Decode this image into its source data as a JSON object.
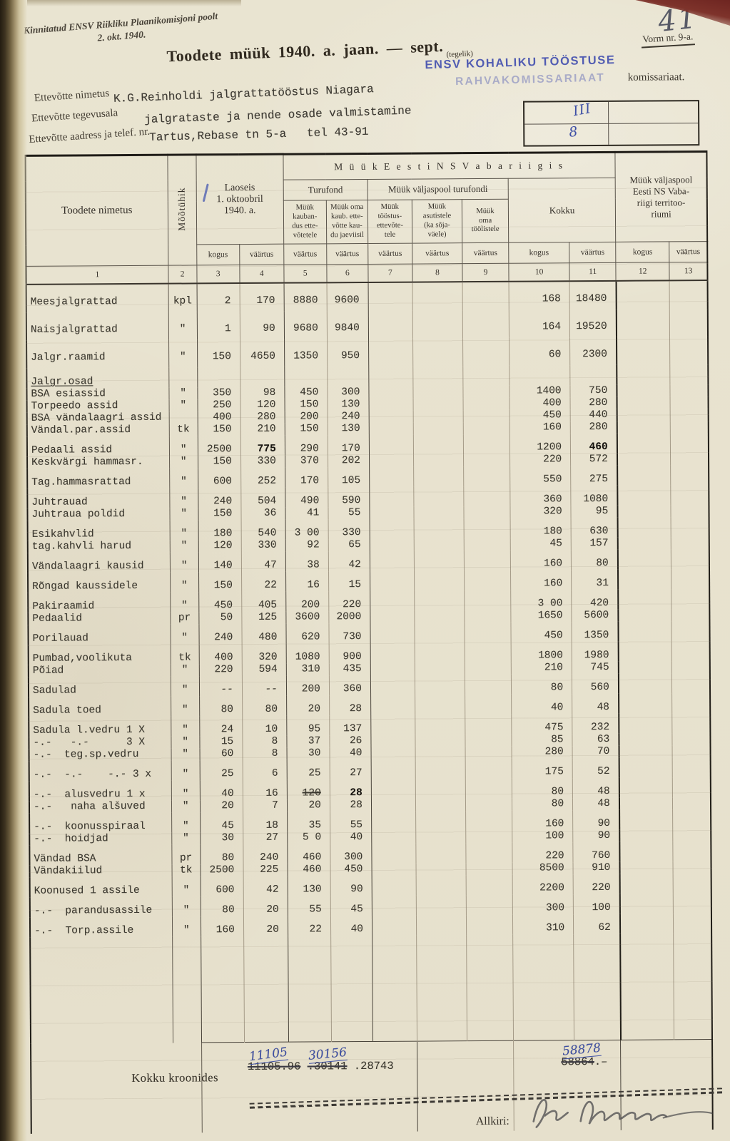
{
  "head": {
    "approved1": "Kinnitatud ENSV Riikliku Plaanikomisjoni poolt",
    "approved2": "2. okt. 1940.",
    "hand_number": "41",
    "form_number": "Vorm nr. 9-a.",
    "title": "Toodete müük 1940. a. jaan. — sept.",
    "title_note": "(tegelik)",
    "stamp1": "ENSV KOHALIKU TÖÖSTUSE",
    "stamp2": "RAHVAKOMISSARIAAT",
    "komissariaat": "komissariaat.",
    "fields": [
      {
        "label": "Ettevõtte nimetus",
        "value": "K.G.Reinholdi jalgrattatööstus Niagara"
      },
      {
        "label": "Ettevõtte tegevusala",
        "value": "jalgrataste ja nende osade valmistamine"
      },
      {
        "label": "Ettevõtte aadress ja telef. nr.",
        "value": "Tartus,Rebase tn 5-a   tel 43-91"
      }
    ],
    "box": {
      "r1": "III",
      "r2": "8"
    }
  },
  "table": {
    "h": {
      "name": "Toodete nimetus",
      "unit": "Mõõtühik",
      "laoseis": "Laoseis\n1. oktoobril\n1940. a.",
      "ensv": "M ü ü k  E e s t i  N S  V a b a r i i g i s",
      "valjaspool": "Müük väljaspool\nEesti NS Vaba-\nriigi territoo-\nriumi",
      "turufond": "Turufond",
      "valjaspool_turufondi": "Müük väljaspool turufondi",
      "kokku": "Kokku",
      "c5": "Müük\nkauban-\ndus ette-\nvõtetele",
      "c6": "Müük oma\nkaub. ette-\nvõtte kau-\ndu jaeviisil",
      "c7": "Müük\ntööstus-\nettevõte-\ntele",
      "c8": "Müük\nasutistele\n(ka sõja-\nväele)",
      "c9": "Müük\noma\ntöölistele",
      "kogus": "kogus",
      "vaartus": "väärtus"
    },
    "nums": [
      "1",
      "2",
      "3",
      "4",
      "5",
      "6",
      "7",
      "8",
      "9",
      "10",
      "11",
      "12",
      "13"
    ],
    "rows": [
      {
        "c": [
          "Meesjalgrattad",
          "kpl",
          "2",
          "170",
          "8880",
          "9600",
          "",
          "",
          "",
          "168",
          "18480",
          "",
          ""
        ],
        "sp": "w"
      },
      {
        "c": [
          "Naisjalgrattad",
          "\"",
          "1",
          "90",
          "9680",
          "9840",
          "",
          "",
          "",
          "164",
          "19520",
          "",
          ""
        ],
        "sp": "w"
      },
      {
        "c": [
          "Jalgr.raamid",
          "\"",
          "150",
          "4650",
          "1350",
          "950",
          "",
          "",
          "",
          "60",
          "2300",
          "",
          ""
        ],
        "sp": "w"
      },
      {
        "c": [
          "Jalgr.osad",
          "",
          "",
          "",
          "",
          "",
          "",
          "",
          "",
          "",
          "",
          "",
          ""
        ],
        "sp": "g",
        "gap": true
      },
      {
        "c": [
          "BSA esiassid",
          "\"",
          "350",
          "98",
          "450",
          "300",
          "",
          "",
          "",
          "1400",
          "750",
          "",
          ""
        ],
        "sp": "t"
      },
      {
        "c": [
          "Torpeedo assid",
          "\"",
          "250",
          "120",
          "150",
          "130",
          "",
          "",
          "",
          "400",
          "280",
          "",
          ""
        ],
        "sp": "t"
      },
      {
        "c": [
          "BSA vändalaagri assid",
          "",
          "400",
          "280",
          "200",
          "240",
          "",
          "",
          "",
          "450",
          "440",
          "",
          ""
        ],
        "sp": "t"
      },
      {
        "c": [
          "Vändal.par.assid",
          "tk",
          "150",
          "210",
          "150",
          "130",
          "",
          "",
          "",
          "160",
          "280",
          "",
          ""
        ],
        "sp": "t"
      },
      {
        "c": [
          "Pedaali assid",
          "\"",
          "2500",
          "775",
          "290",
          "170",
          "",
          "",
          "",
          "1200",
          "460",
          "",
          ""
        ],
        "sp": "t",
        "gap": true,
        "marks": {
          "3": "b",
          "10": "b"
        }
      },
      {
        "c": [
          "Keskvärgi hammasr.",
          "\"",
          "150",
          "330",
          "370",
          "202",
          "",
          "",
          "",
          "220",
          "572",
          "",
          ""
        ],
        "sp": "t"
      },
      {
        "c": [
          "Tag.hammasrattad",
          "\"",
          "600",
          "252",
          "170",
          "105",
          "",
          "",
          "",
          "550",
          "275",
          "",
          ""
        ],
        "sp": "t",
        "gap": true
      },
      {
        "c": [
          "Juhtrauad",
          "\"",
          "240",
          "504",
          "490",
          "590",
          "",
          "",
          "",
          "360",
          "1080",
          "",
          ""
        ],
        "sp": "t",
        "gap": true
      },
      {
        "c": [
          "Juhtraua poldid",
          "\"",
          "150",
          "36",
          "41",
          "55",
          "",
          "",
          "",
          "320",
          "95",
          "",
          ""
        ],
        "sp": "t"
      },
      {
        "c": [
          "Esikahvlid",
          "\"",
          "180",
          "540",
          "3 00",
          "330",
          "",
          "",
          "",
          "180",
          "630",
          "",
          ""
        ],
        "sp": "t",
        "gap": true
      },
      {
        "c": [
          "tag.kahvli harud",
          "\"",
          "120",
          "330",
          "92",
          "65",
          "",
          "",
          "",
          "45",
          "157",
          "",
          ""
        ],
        "sp": "t"
      },
      {
        "c": [
          "Vändalaagri kausid",
          "\"",
          "140",
          "47",
          "38",
          "42",
          "",
          "",
          "",
          "160",
          "80",
          "",
          ""
        ],
        "sp": "t",
        "gap": true
      },
      {
        "c": [
          "Rõngad kaussidele",
          "\"",
          "150",
          "22",
          "16",
          "15",
          "",
          "",
          "",
          "160",
          "31",
          "",
          ""
        ],
        "sp": "t",
        "gap": true
      },
      {
        "c": [
          "Pakiraamid",
          "\"",
          "450",
          "405",
          "200",
          "220",
          "",
          "",
          "",
          "3 00",
          "420",
          "",
          ""
        ],
        "sp": "t",
        "gap": true
      },
      {
        "c": [
          "Pedaalid",
          "pr",
          "50",
          "125",
          "3600",
          "2000",
          "",
          "",
          "",
          "1650",
          "5600",
          "",
          ""
        ],
        "sp": "t"
      },
      {
        "c": [
          "Porilauad",
          "\"",
          "240",
          "480",
          "620",
          "730",
          "",
          "",
          "",
          "450",
          "1350",
          "",
          ""
        ],
        "sp": "t",
        "gap": true
      },
      {
        "c": [
          "Pumbad,voolikuta",
          "tk",
          "400",
          "320",
          "1080",
          "900",
          "",
          "",
          "",
          "1800",
          "1980",
          "",
          ""
        ],
        "sp": "t",
        "gap": true
      },
      {
        "c": [
          "Põiad",
          "\"",
          "220",
          "594",
          "310",
          "435",
          "",
          "",
          "",
          "210",
          "745",
          "",
          ""
        ],
        "sp": "t"
      },
      {
        "c": [
          "Sadulad",
          "\"",
          "--",
          "--",
          "200",
          "360",
          "",
          "",
          "",
          "80",
          "560",
          "",
          ""
        ],
        "sp": "t",
        "gap": true
      },
      {
        "c": [
          "Sadula toed",
          "\"",
          "80",
          "80",
          "20",
          "28",
          "",
          "",
          "",
          "40",
          "48",
          "",
          ""
        ],
        "sp": "t",
        "gap": true
      },
      {
        "c": [
          "Sadula l.vedru 1 X",
          "\"",
          "24",
          "10",
          "95",
          "137",
          "",
          "",
          "",
          "475",
          "232",
          "",
          ""
        ],
        "sp": "t",
        "gap": true
      },
      {
        "c": [
          "-.-   -.-      3 X",
          "\"",
          "15",
          "8",
          "37",
          "26",
          "",
          "",
          "",
          "85",
          "63",
          "",
          ""
        ],
        "sp": "t"
      },
      {
        "c": [
          "-.-  teg.sp.vedru",
          "\"",
          "60",
          "8",
          "30",
          "40",
          "",
          "",
          "",
          "280",
          "70",
          "",
          ""
        ],
        "sp": "t"
      },
      {
        "c": [
          "-.-  -.-    -.- 3 x",
          "\"",
          "25",
          "6",
          "25",
          "27",
          "",
          "",
          "",
          "175",
          "52",
          "",
          ""
        ],
        "sp": "t",
        "gap": true
      },
      {
        "c": [
          "-.-  alusvedru 1 x",
          "\"",
          "40",
          "16",
          "120",
          "28",
          "",
          "",
          "",
          "80",
          "48",
          "",
          ""
        ],
        "sp": "t",
        "gap": true,
        "marks": {
          "4": "s",
          "5": "b"
        }
      },
      {
        "c": [
          "-.-   naha alšuved",
          "\"",
          "20",
          "7",
          "20",
          "28",
          "",
          "",
          "",
          "80",
          "48",
          "",
          ""
        ],
        "sp": "t"
      },
      {
        "c": [
          "-.-  koonusspiraal",
          "\"",
          "45",
          "18",
          "35",
          "55",
          "",
          "",
          "",
          "160",
          "90",
          "",
          ""
        ],
        "sp": "t",
        "gap": true
      },
      {
        "c": [
          "-.-  hoidjad",
          "\"",
          "30",
          "27",
          "5 0",
          "40",
          "",
          "",
          "",
          "100",
          "90",
          "",
          ""
        ],
        "sp": "t"
      },
      {
        "c": [
          "Vändad BSA",
          "pr",
          "80",
          "240",
          "460",
          "300",
          "",
          "",
          "",
          "220",
          "760",
          "",
          ""
        ],
        "sp": "t",
        "gap": true
      },
      {
        "c": [
          "Vändakiilud",
          "tk",
          "2500",
          "225",
          "460",
          "450",
          "",
          "",
          "",
          "8500",
          "910",
          "",
          ""
        ],
        "sp": "t"
      },
      {
        "c": [
          "Koonused 1 assile",
          "\"",
          "600",
          "42",
          "130",
          "90",
          "",
          "",
          "",
          "2200",
          "220",
          "",
          ""
        ],
        "sp": "t",
        "gap": true
      },
      {
        "c": [
          "-.-  parandusassile",
          "\"",
          "80",
          "20",
          "55",
          "45",
          "",
          "",
          "",
          "300",
          "100",
          "",
          ""
        ],
        "sp": "t",
        "gap": true
      },
      {
        "c": [
          "-.-  Torp.assile",
          "\"",
          "160",
          "20",
          "22",
          "40",
          "",
          "",
          "",
          "310",
          "62",
          "",
          ""
        ],
        "sp": "t",
        "gap": true
      }
    ]
  },
  "footer": {
    "kokku_label": "Kokku kroonides",
    "t1_struck": "11105.96",
    "t1_hand": "11105",
    "t2_struck": ".30141",
    "t2_hand": "30156",
    "t3_typed": ".28743",
    "tr_struck": "58864",
    "tr_tail": ".–",
    "tr_hand": "58878",
    "allkiri_label": "Allkiri:",
    "signature": "A. Nuna"
  }
}
